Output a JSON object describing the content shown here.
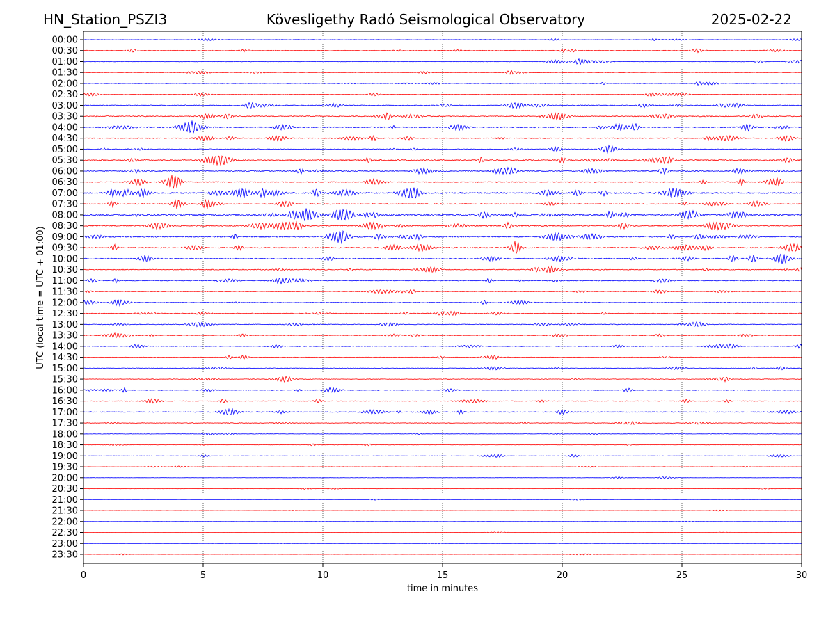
{
  "header": {
    "station": "HN_Station_PSZI3",
    "title": "Kövesligethy Radó Seismological Observatory",
    "date": "2025-02-22"
  },
  "chart_data": {
    "type": "line",
    "subtype": "seismogram dayplot",
    "xlabel": "time in minutes",
    "ylabel": "UTC (local time = UTC + 01:00)",
    "xlim": [
      0,
      30
    ],
    "xticks": [
      0,
      5,
      10,
      15,
      20,
      25,
      30
    ],
    "grid": "vertical dotted lines at x ticks",
    "colors": [
      "#0000ff",
      "#ff0000"
    ],
    "rows": [
      "00:00",
      "00:30",
      "01:00",
      "01:30",
      "02:00",
      "02:30",
      "03:00",
      "03:30",
      "04:00",
      "04:30",
      "05:00",
      "05:30",
      "06:00",
      "06:30",
      "07:00",
      "07:30",
      "08:00",
      "08:30",
      "09:00",
      "09:30",
      "10:00",
      "10:30",
      "11:00",
      "11:30",
      "12:00",
      "12:30",
      "13:00",
      "13:30",
      "14:00",
      "14:30",
      "15:00",
      "15:30",
      "16:00",
      "16:30",
      "17:00",
      "17:30",
      "18:00",
      "18:30",
      "19:00",
      "19:30",
      "20:00",
      "20:30",
      "21:00",
      "21:30",
      "22:00",
      "22:30",
      "23:00",
      "23:30"
    ],
    "relative_amplitude": [
      0.6,
      1,
      0.8,
      0.7,
      0.7,
      0.7,
      1.2,
      1.3,
      1.6,
      1.2,
      1,
      1.5,
      1.4,
      1.4,
      2,
      1.3,
      2.2,
      1.5,
      1.8,
      1.5,
      1.5,
      1.2,
      1.2,
      0.9,
      0.9,
      1,
      1,
      1,
      1,
      0.8,
      0.8,
      0.8,
      1,
      1,
      1.2,
      0.8,
      0.6,
      0.6,
      0.6,
      0.5,
      0.4,
      0.4,
      0.3,
      0.3,
      0.3,
      0.3,
      0.3,
      0.3
    ]
  }
}
